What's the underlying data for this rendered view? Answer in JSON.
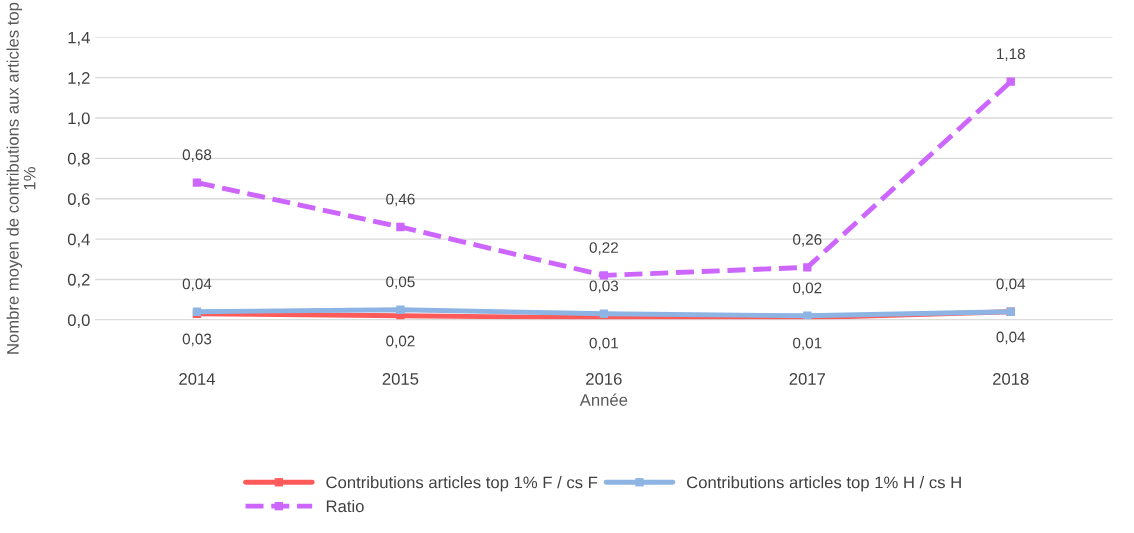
{
  "chart_data": {
    "type": "line",
    "xlabel": "Année",
    "ylabel": "Nombre moyen de contributions aux articles top 1%",
    "categories": [
      "2014",
      "2015",
      "2016",
      "2017",
      "2018"
    ],
    "ylim": [
      0,
      1.4
    ],
    "yticks": [
      {
        "value": 0,
        "label": "0,0"
      },
      {
        "value": 0.2,
        "label": "0,2"
      },
      {
        "value": 0.4,
        "label": "0,4"
      },
      {
        "value": 0.6,
        "label": "0,6"
      },
      {
        "value": 0.8,
        "label": "0,8"
      },
      {
        "value": 1.0,
        "label": "1,0"
      },
      {
        "value": 1.2,
        "label": "1,2"
      },
      {
        "value": 1.4,
        "label": "1,4"
      }
    ],
    "grid": "y",
    "legend": "bottom",
    "marker": "square",
    "series": [
      {
        "name": "Contributions articles top 1% F / cs F",
        "color": "#ff5a5a",
        "line_style": "solid",
        "values": [
          0.03,
          0.02,
          0.01,
          0.01,
          0.04
        ],
        "value_labels": [
          "0,03",
          "0,02",
          "0,01",
          "0,01",
          "0,04"
        ]
      },
      {
        "name": "Contributions articles top 1% H / cs H",
        "color": "#8db4e2",
        "line_style": "solid",
        "values": [
          0.04,
          0.05,
          0.03,
          0.02,
          0.04
        ],
        "value_labels": [
          "0,04",
          "0,05",
          "0,03",
          "0,02",
          "0,04"
        ]
      },
      {
        "name": "Ratio",
        "color": "#cc66ff",
        "line_style": "dashed",
        "values": [
          0.68,
          0.46,
          0.22,
          0.26,
          1.18
        ],
        "value_labels": [
          "0,68",
          "0,46",
          "0,22",
          "0,26",
          "1,18"
        ]
      }
    ]
  }
}
